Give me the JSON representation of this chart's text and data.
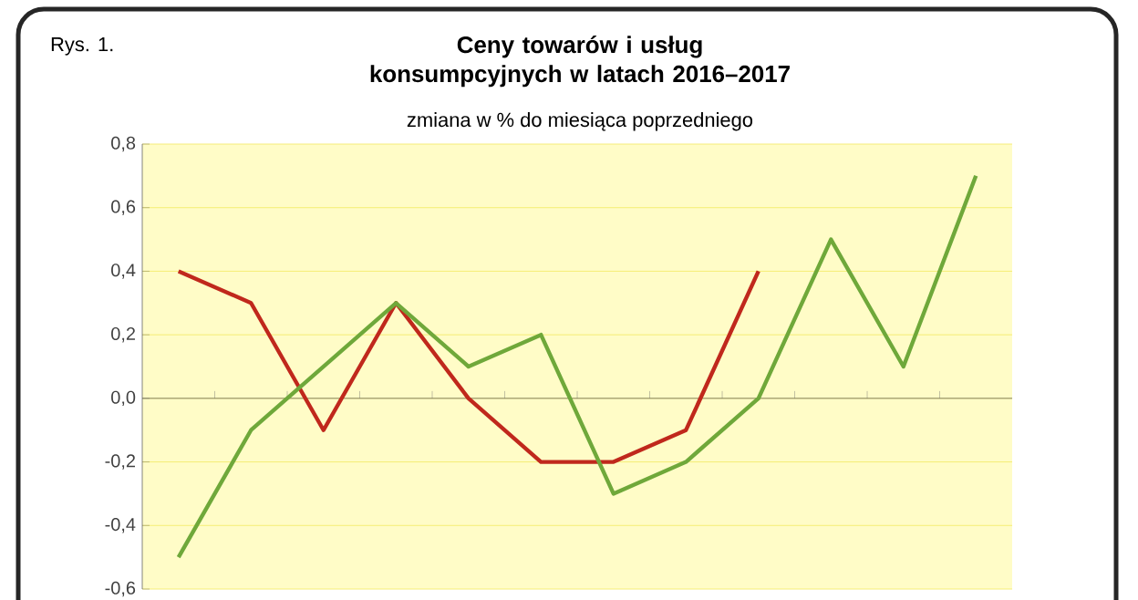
{
  "chart_data": {
    "type": "line",
    "title": "Ceny towarów i usług konsumpcyjnych w latach 2016–2017",
    "subtitle": "zmiana w % do miesiąca poprzedniego",
    "annotations": [
      "Rys. 1."
    ],
    "categories": [
      null,
      null,
      null,
      null,
      null,
      null,
      null,
      null,
      null,
      null,
      null,
      null
    ],
    "series": [
      {
        "color": "#c0281c",
        "values": [
          0.4,
          0.3,
          -0.1,
          0.3,
          0.0,
          -0.2,
          -0.2,
          -0.1,
          0.4,
          null,
          null,
          null
        ]
      },
      {
        "color": "#6fa83a",
        "values": [
          -0.5,
          -0.1,
          0.1,
          0.3,
          0.1,
          0.2,
          -0.3,
          -0.2,
          0.0,
          0.5,
          0.1,
          0.7
        ]
      }
    ],
    "ylim": [
      -0.6,
      0.8
    ],
    "yticks": [
      {
        "value": -0.6,
        "label": "-0,6"
      },
      {
        "value": -0.4,
        "label": "-0,4"
      },
      {
        "value": -0.2,
        "label": "-0,2"
      },
      {
        "value": 0.0,
        "label": "0,0"
      },
      {
        "value": 0.2,
        "label": "0,2"
      },
      {
        "value": 0.4,
        "label": "0,4"
      },
      {
        "value": 0.6,
        "label": "0,6"
      },
      {
        "value": 0.8,
        "label": "0,8"
      }
    ],
    "grid": "y",
    "line_style": "solid",
    "marker": "none"
  }
}
